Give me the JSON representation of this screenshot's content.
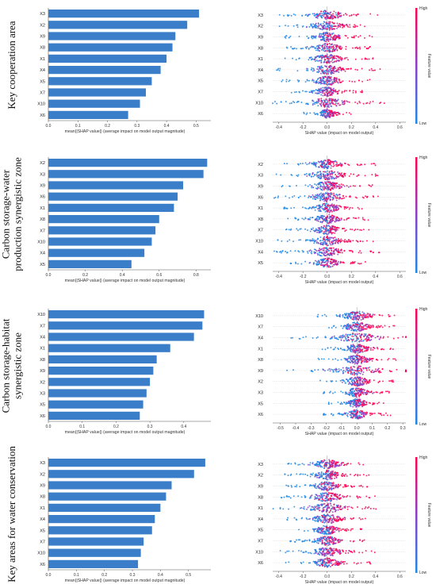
{
  "colors": {
    "bar": "#3a7dc9",
    "low": "#1e88e5",
    "high": "#ff0052",
    "axis": "#555555"
  },
  "colorbar": {
    "high_label": "High",
    "low_label": "Low",
    "title": "Feature value"
  },
  "panels": [
    {
      "row_label": [
        "Key cooperation area"
      ],
      "bar_chart": {
        "type": "bar",
        "orientation": "horizontal",
        "categories": [
          "X3",
          "X2",
          "X9",
          "X8",
          "X1",
          "X4",
          "X5",
          "X7",
          "X10",
          "X6"
        ],
        "values": [
          0.51,
          0.47,
          0.43,
          0.42,
          0.4,
          0.38,
          0.35,
          0.33,
          0.31,
          0.27
        ],
        "xlim": [
          0,
          0.55
        ],
        "xticks": [
          "0.0",
          "0.1",
          "0.2",
          "0.3",
          "0.4",
          "0.5"
        ],
        "xtick_values": [
          0,
          0.1,
          0.2,
          0.3,
          0.4,
          0.5
        ],
        "xlabel": "mean(|SHAP value|) (average impact on model output magnitude)"
      },
      "beeswarm": {
        "type": "scatter",
        "features": [
          "X3",
          "X2",
          "X9",
          "X8",
          "X1",
          "X4",
          "X5",
          "X7",
          "X10",
          "X6"
        ],
        "spread": [
          0.42,
          0.4,
          0.38,
          0.36,
          0.38,
          0.44,
          0.38,
          0.3,
          0.48,
          0.2
        ],
        "xlim": [
          -0.45,
          0.65
        ],
        "xticks": [
          "-0.4",
          "-0.2",
          "0.0",
          "0.2",
          "0.4",
          "0.6"
        ],
        "xtick_values": [
          -0.4,
          -0.2,
          0,
          0.2,
          0.4,
          0.6
        ],
        "xlabel": "SHAP value (impact on model output)"
      }
    },
    {
      "row_label": [
        "Carbon storage-water",
        "production synergistic zone"
      ],
      "bar_chart": {
        "type": "bar",
        "orientation": "horizontal",
        "categories": [
          "X2",
          "X3",
          "X9",
          "X6",
          "X1",
          "X8",
          "X7",
          "X10",
          "X4",
          "X5"
        ],
        "values": [
          0.86,
          0.84,
          0.73,
          0.7,
          0.68,
          0.6,
          0.58,
          0.56,
          0.52,
          0.45
        ],
        "xlim": [
          0,
          0.88
        ],
        "xticks": [
          "0.0",
          "0.2",
          "0.4",
          "0.6",
          "0.8"
        ],
        "xtick_values": [
          0,
          0.2,
          0.4,
          0.6,
          0.8
        ],
        "xlabel": "mean(|SHAP value|) (average impact on model output magnitude)"
      },
      "beeswarm": {
        "type": "scatter",
        "features": [
          "X2",
          "X3",
          "X9",
          "X6",
          "X1",
          "X8",
          "X7",
          "X10",
          "X4",
          "X5"
        ],
        "spread": [
          0.4,
          0.42,
          0.38,
          0.44,
          0.36,
          0.34,
          0.36,
          0.42,
          0.44,
          0.32
        ],
        "xlim": [
          -0.45,
          0.65
        ],
        "xticks": [
          "-0.4",
          "-0.2",
          "0.0",
          "0.2",
          "0.4",
          "0.6"
        ],
        "xtick_values": [
          -0.4,
          -0.2,
          0,
          0.2,
          0.4,
          0.6
        ],
        "xlabel": "SHAP value (impact on model output)"
      }
    },
    {
      "row_label": [
        "Carbon storage-habitat",
        "synergistic zone"
      ],
      "bar_chart": {
        "type": "bar",
        "orientation": "horizontal",
        "categories": [
          "X10",
          "X7",
          "X4",
          "X1",
          "X8",
          "X9",
          "X2",
          "X3",
          "X5",
          "X6"
        ],
        "values": [
          0.46,
          0.455,
          0.43,
          0.36,
          0.32,
          0.31,
          0.3,
          0.29,
          0.28,
          0.27
        ],
        "xlim": [
          0,
          0.48
        ],
        "xticks": [
          "0.0",
          "0.1",
          "0.2",
          "0.3",
          "0.4"
        ],
        "xtick_values": [
          0,
          0.1,
          0.2,
          0.3,
          0.4
        ],
        "xlabel": "mean(|SHAP value|) (average impact on model output magnitude)"
      },
      "beeswarm": {
        "type": "scatter",
        "features": [
          "X10",
          "X7",
          "X4",
          "X1",
          "X8",
          "X9",
          "X2",
          "X3",
          "X5",
          "X6"
        ],
        "spread": [
          0.28,
          0.26,
          0.45,
          0.24,
          0.26,
          0.5,
          0.24,
          0.22,
          0.2,
          0.22
        ],
        "xlim": [
          -0.55,
          0.32
        ],
        "xticks": [
          "-0.5",
          "-0.4",
          "-0.3",
          "-0.2",
          "-0.1",
          "0.0",
          "0.1",
          "0.2",
          "0.3"
        ],
        "xtick_values": [
          -0.5,
          -0.4,
          -0.3,
          -0.2,
          -0.1,
          0,
          0.1,
          0.2,
          0.3
        ],
        "xlabel": "SHAP value (impact on model output)"
      }
    },
    {
      "row_label": [
        "Key areas for water conservation"
      ],
      "bar_chart": {
        "type": "bar",
        "orientation": "horizontal",
        "categories": [
          "X3",
          "X2",
          "X9",
          "X8",
          "X1",
          "X4",
          "X5",
          "X7",
          "X10",
          "X6"
        ],
        "values": [
          0.56,
          0.52,
          0.44,
          0.42,
          0.4,
          0.38,
          0.37,
          0.34,
          0.33,
          0.32
        ],
        "xlim": [
          0,
          0.58
        ],
        "xticks": [
          "0.0",
          "0.1",
          "0.2",
          "0.3",
          "0.4",
          "0.5"
        ],
        "xtick_values": [
          0,
          0.1,
          0.2,
          0.3,
          0.4,
          0.5
        ],
        "xlabel": "mean(|SHAP value|) (average impact on model output magnitude)"
      },
      "beeswarm": {
        "type": "scatter",
        "features": [
          "X3",
          "X2",
          "X9",
          "X8",
          "X1",
          "X4",
          "X5",
          "X7",
          "X10",
          "X6"
        ],
        "spread": [
          0.34,
          0.36,
          0.34,
          0.4,
          0.48,
          0.36,
          0.3,
          0.32,
          0.4,
          0.36
        ],
        "xlim": [
          -0.45,
          0.65
        ],
        "xticks": [
          "-0.4",
          "-0.2",
          "0.0",
          "0.2",
          "0.4",
          "0.6"
        ],
        "xtick_values": [
          -0.4,
          -0.2,
          0,
          0.2,
          0.4,
          0.6
        ],
        "xlabel": "SHAP value (impact on model output)"
      }
    }
  ]
}
